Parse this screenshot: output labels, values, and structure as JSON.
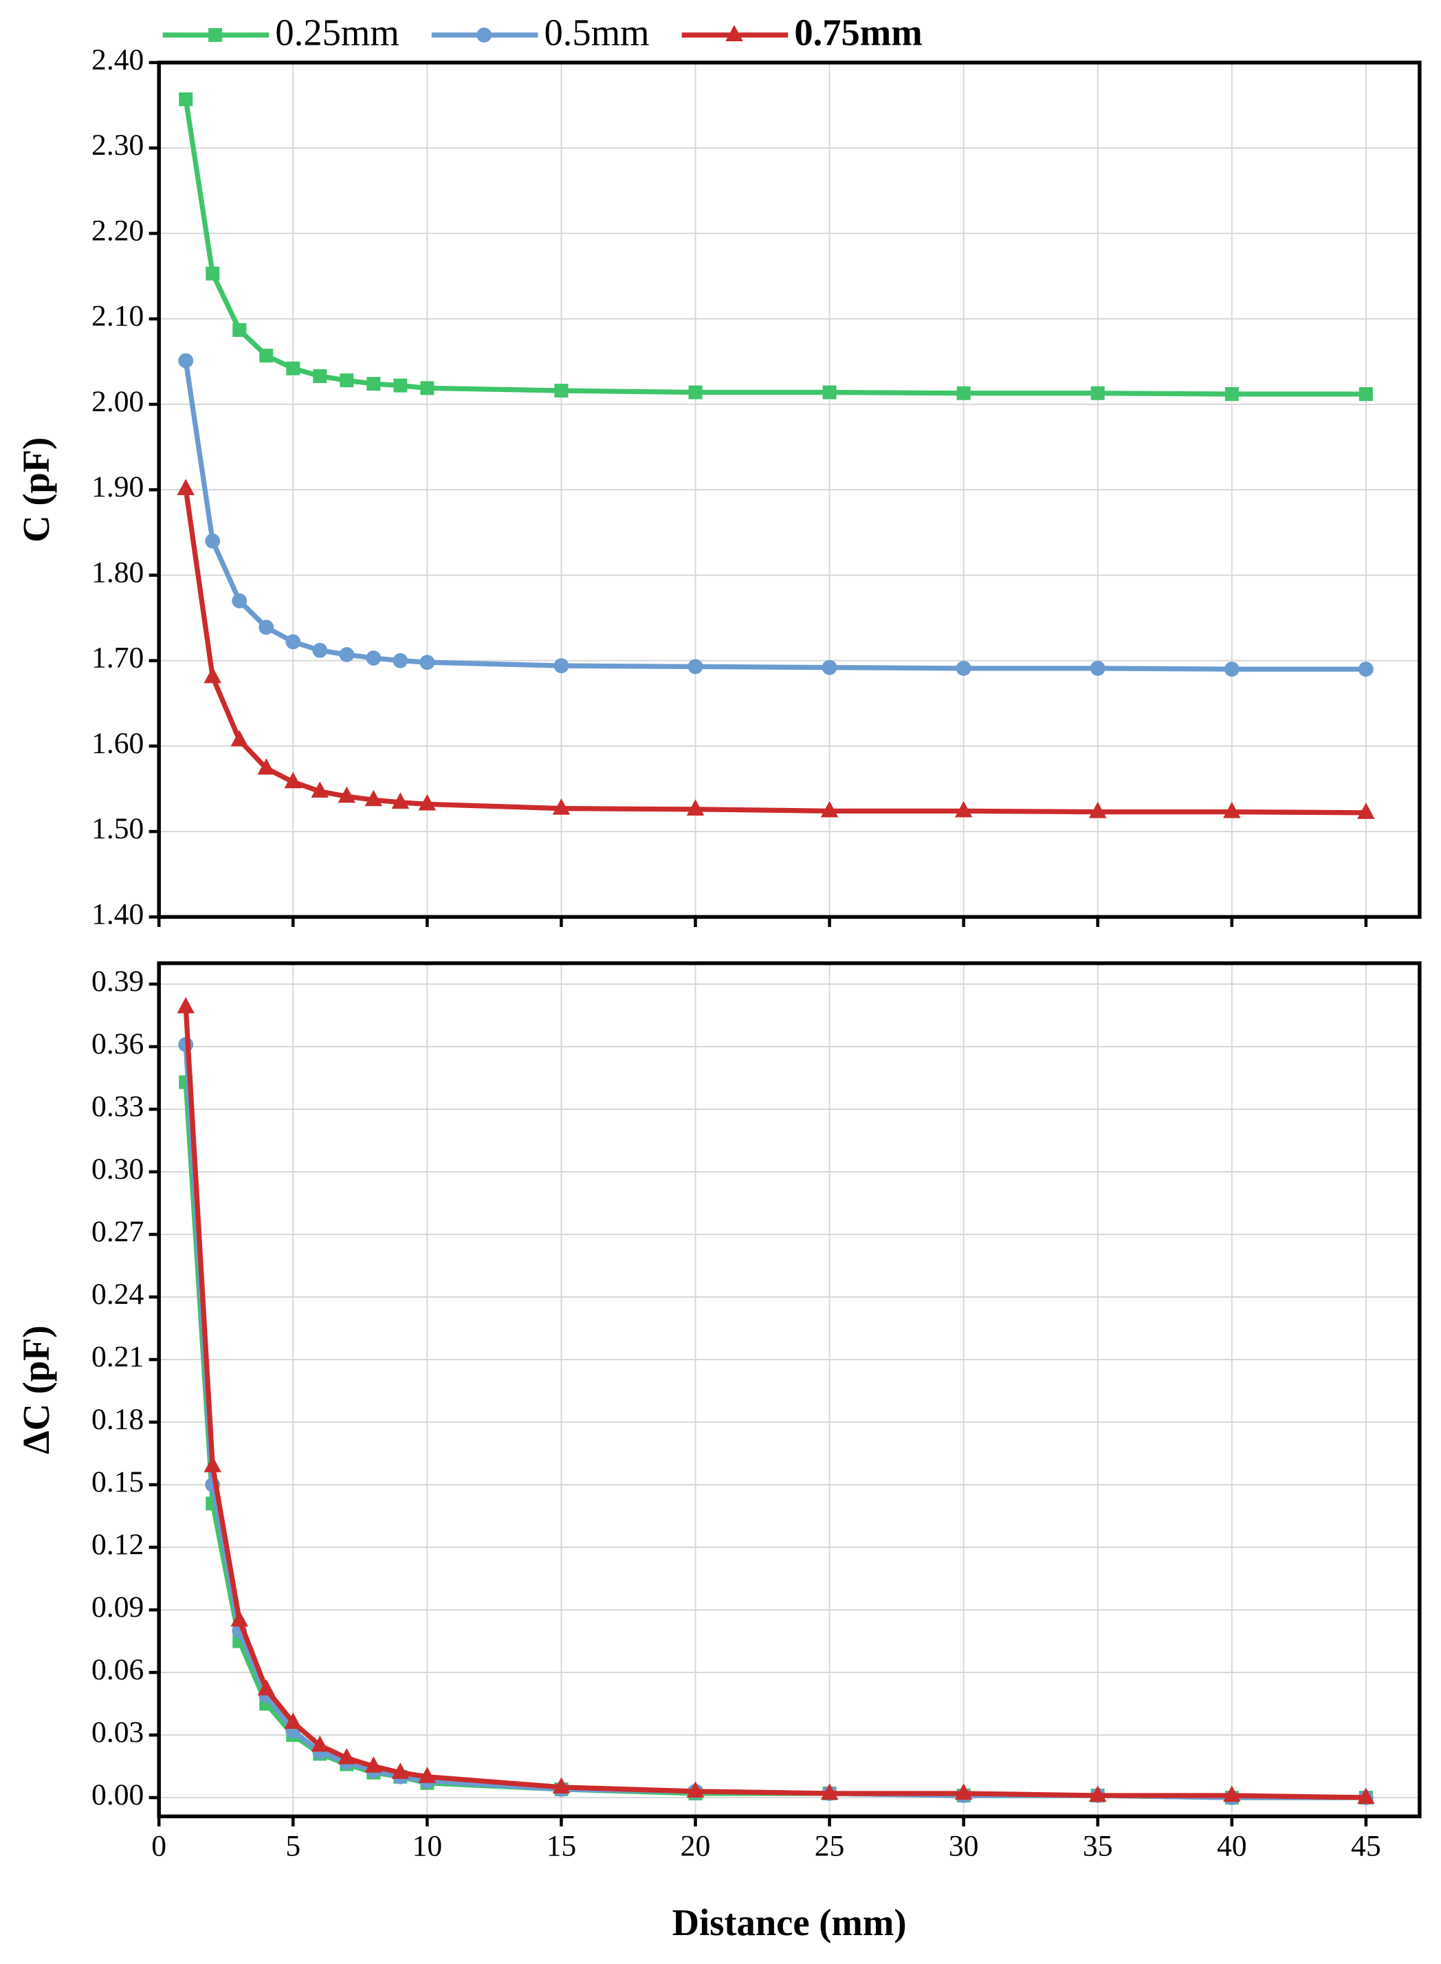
{
  "chart_data": [
    {
      "type": "line",
      "ylabel": "C (pF)",
      "x": [
        1,
        2,
        3,
        4,
        5,
        6,
        7,
        8,
        9,
        10,
        15,
        20,
        25,
        30,
        35,
        40,
        45
      ],
      "xlim": [
        0,
        47
      ],
      "xticks": [
        0,
        5,
        10,
        15,
        20,
        25,
        30,
        35,
        40,
        45
      ],
      "ylim": [
        1.4,
        2.4
      ],
      "yticks": [
        {
          "value": 1.4,
          "label": "1.40"
        },
        {
          "value": 1.5,
          "label": "1.50"
        },
        {
          "value": 1.6,
          "label": "1.60"
        },
        {
          "value": 1.7,
          "label": "1.70"
        },
        {
          "value": 1.8,
          "label": "1.80"
        },
        {
          "value": 1.9,
          "label": "1.90"
        },
        {
          "value": 2.0,
          "label": "2.00"
        },
        {
          "value": 2.1,
          "label": "2.10"
        },
        {
          "value": 2.2,
          "label": "2.20"
        },
        {
          "value": 2.3,
          "label": "2.30"
        },
        {
          "value": 2.4,
          "label": "2.40"
        }
      ],
      "grid": true,
      "series": [
        {
          "name": "0.25mm",
          "color": "#3fc46a",
          "marker": "square",
          "values": [
            2.357,
            2.153,
            2.087,
            2.057,
            2.042,
            2.033,
            2.028,
            2.024,
            2.022,
            2.019,
            2.016,
            2.014,
            2.014,
            2.013,
            2.013,
            2.012,
            2.012
          ]
        },
        {
          "name": "0.5mm",
          "color": "#6a9bd1",
          "marker": "circle",
          "values": [
            2.051,
            1.84,
            1.77,
            1.739,
            1.722,
            1.712,
            1.707,
            1.703,
            1.7,
            1.698,
            1.694,
            1.693,
            1.692,
            1.691,
            1.691,
            1.69,
            1.69
          ]
        },
        {
          "name": "0.75mm",
          "color": "#cc2b2b",
          "marker": "triangle",
          "values": [
            1.901,
            1.681,
            1.607,
            1.574,
            1.558,
            1.547,
            1.541,
            1.537,
            1.534,
            1.532,
            1.527,
            1.526,
            1.524,
            1.524,
            1.523,
            1.523,
            1.522
          ]
        }
      ]
    },
    {
      "type": "line",
      "ylabel": "ΔC (pF)",
      "xlabel": "Distance (mm)",
      "x": [
        1,
        2,
        3,
        4,
        5,
        6,
        7,
        8,
        9,
        10,
        15,
        20,
        25,
        30,
        35,
        40,
        45
      ],
      "xlim": [
        0,
        47
      ],
      "xticks": [
        0,
        5,
        10,
        15,
        20,
        25,
        30,
        35,
        40,
        45
      ],
      "ylim": [
        -0.009,
        0.4
      ],
      "yticks": [
        {
          "value": 0,
          "label": "0.00"
        },
        0.03,
        0.06,
        0.09,
        0.12,
        0.15,
        0.18,
        0.21,
        0.24,
        0.27,
        {
          "value": 0.3,
          "label": "0.30"
        },
        0.33,
        0.36,
        0.39
      ],
      "grid": true,
      "series": [
        {
          "color": "#3fc46a",
          "marker": "square",
          "values": [
            0.343,
            0.141,
            0.075,
            0.045,
            0.03,
            0.021,
            0.016,
            0.012,
            0.01,
            0.007,
            0.004,
            0.002,
            0.002,
            0.001,
            0.001,
            0.0,
            0.0
          ]
        },
        {
          "color": "#6a9bd1",
          "marker": "circle",
          "values": [
            0.361,
            0.15,
            0.08,
            0.049,
            0.032,
            0.022,
            0.017,
            0.013,
            0.01,
            0.008,
            0.004,
            0.003,
            0.002,
            0.001,
            0.001,
            0.0,
            0.0
          ]
        },
        {
          "color": "#cc2b2b",
          "marker": "triangle",
          "values": [
            0.379,
            0.159,
            0.085,
            0.052,
            0.036,
            0.025,
            0.019,
            0.015,
            0.012,
            0.01,
            0.005,
            0.003,
            0.002,
            0.002,
            0.001,
            0.001,
            0.0
          ]
        }
      ]
    }
  ]
}
